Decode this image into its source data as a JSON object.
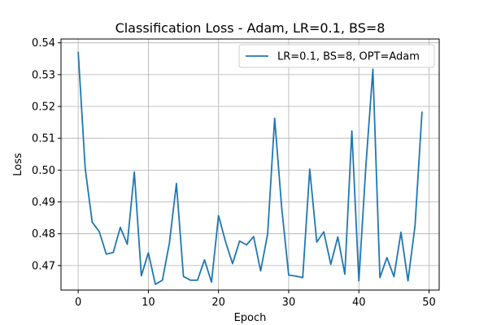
{
  "chart_data": {
    "type": "line",
    "title": "Classification Loss - Adam, LR=0.1, BS=8",
    "xlabel": "Epoch",
    "ylabel": "Loss",
    "xlim": [
      -2.45,
      51.45
    ],
    "ylim": [
      0.4623,
      0.5412
    ],
    "xticks": [
      0,
      10,
      20,
      30,
      40,
      50
    ],
    "yticks": [
      0.47,
      0.48,
      0.49,
      0.5,
      0.51,
      0.52,
      0.53,
      0.54
    ],
    "ytick_labels": [
      "0.47",
      "0.48",
      "0.49",
      "0.50",
      "0.51",
      "0.52",
      "0.53",
      "0.54"
    ],
    "grid": true,
    "legend_position": "upper right",
    "series": [
      {
        "name": "LR=0.1, BS=8, OPT=Adam",
        "color": "#1f77b4",
        "x": [
          0,
          1,
          2,
          3,
          4,
          5,
          6,
          7,
          8,
          9,
          10,
          11,
          12,
          13,
          14,
          15,
          16,
          17,
          18,
          19,
          20,
          21,
          22,
          23,
          24,
          25,
          26,
          27,
          28,
          29,
          30,
          31,
          32,
          33,
          34,
          35,
          36,
          37,
          38,
          39,
          40,
          41,
          42,
          43,
          44,
          45,
          46,
          47,
          48,
          49
        ],
        "y": [
          0.5372,
          0.5005,
          0.4836,
          0.4807,
          0.4736,
          0.4741,
          0.482,
          0.4767,
          0.4994,
          0.4668,
          0.474,
          0.4641,
          0.4654,
          0.4771,
          0.4958,
          0.4666,
          0.4654,
          0.4654,
          0.4718,
          0.4648,
          0.4857,
          0.4775,
          0.4706,
          0.4777,
          0.4765,
          0.4791,
          0.4683,
          0.4799,
          0.5163,
          0.4882,
          0.467,
          0.4667,
          0.4662,
          0.5003,
          0.4774,
          0.4806,
          0.4704,
          0.479,
          0.4673,
          0.5123,
          0.4652,
          0.5013,
          0.5317,
          0.4662,
          0.4725,
          0.4665,
          0.4805,
          0.4652,
          0.4824,
          0.5184
        ]
      }
    ]
  }
}
